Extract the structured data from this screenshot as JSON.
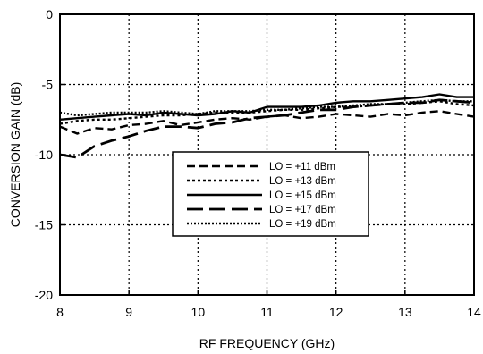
{
  "chart_data": {
    "type": "line",
    "title": "",
    "xlabel": "RF FREQUENCY (GHz)",
    "ylabel": "CONVERSION GAIN (dB)",
    "xlim": [
      8,
      14
    ],
    "ylim": [
      -20,
      0
    ],
    "xticks": [
      8,
      9,
      10,
      11,
      12,
      13,
      14
    ],
    "yticks": [
      0,
      -5,
      -10,
      -15,
      -20
    ],
    "grid": true,
    "legend_position": "center",
    "series": [
      {
        "name": "LO = +11 dBm",
        "style": "dashed",
        "x": [
          8.0,
          8.25,
          8.5,
          8.75,
          9.0,
          9.25,
          9.5,
          9.75,
          10.0,
          10.25,
          10.5,
          10.75,
          11.0,
          11.25,
          11.5,
          11.75,
          12.0,
          12.25,
          12.5,
          12.75,
          13.0,
          13.25,
          13.5,
          13.75,
          14.0
        ],
        "y": [
          -8.0,
          -8.5,
          -8.1,
          -8.2,
          -7.9,
          -7.8,
          -7.6,
          -7.9,
          -7.7,
          -7.5,
          -7.4,
          -7.5,
          -7.3,
          -7.2,
          -7.4,
          -7.3,
          -7.1,
          -7.2,
          -7.3,
          -7.1,
          -7.2,
          -7.0,
          -6.9,
          -7.1,
          -7.3
        ]
      },
      {
        "name": "LO = +13 dBm",
        "style": "dotted",
        "x": [
          8.0,
          8.25,
          8.5,
          8.75,
          9.0,
          9.25,
          9.5,
          9.75,
          10.0,
          10.25,
          10.5,
          10.75,
          11.0,
          11.25,
          11.5,
          11.75,
          12.0,
          12.25,
          12.5,
          12.75,
          13.0,
          13.25,
          13.5,
          13.75,
          14.0
        ],
        "y": [
          -7.8,
          -7.6,
          -7.5,
          -7.5,
          -7.4,
          -7.3,
          -7.2,
          -7.2,
          -7.1,
          -7.0,
          -7.0,
          -7.0,
          -6.9,
          -6.8,
          -6.8,
          -6.7,
          -6.6,
          -6.6,
          -6.5,
          -6.4,
          -6.4,
          -6.3,
          -6.2,
          -6.4,
          -6.5
        ]
      },
      {
        "name": "LO = +15 dBm",
        "style": "solid",
        "x": [
          8.0,
          8.25,
          8.5,
          8.75,
          9.0,
          9.25,
          9.5,
          9.75,
          10.0,
          10.25,
          10.5,
          10.75,
          11.0,
          11.25,
          11.5,
          11.75,
          12.0,
          12.25,
          12.5,
          12.75,
          13.0,
          13.25,
          13.5,
          13.75,
          14.0
        ],
        "y": [
          -7.5,
          -7.4,
          -7.3,
          -7.2,
          -7.1,
          -7.2,
          -7.0,
          -7.1,
          -7.2,
          -7.1,
          -6.9,
          -7.0,
          -6.6,
          -6.6,
          -6.6,
          -6.5,
          -6.3,
          -6.2,
          -6.2,
          -6.1,
          -6.0,
          -5.9,
          -5.7,
          -5.9,
          -5.9
        ]
      },
      {
        "name": "LO = +17 dBm",
        "style": "long-dash",
        "x": [
          8.0,
          8.25,
          8.5,
          8.75,
          9.0,
          9.25,
          9.5,
          9.75,
          10.0,
          10.25,
          10.5,
          10.75,
          11.0,
          11.25,
          11.5,
          11.75,
          12.0,
          12.25,
          12.5,
          12.75,
          13.0,
          13.25,
          13.5,
          13.75,
          14.0
        ],
        "y": [
          -10.0,
          -10.2,
          -9.4,
          -9.0,
          -8.7,
          -8.3,
          -8.0,
          -8.0,
          -8.1,
          -7.8,
          -7.7,
          -7.4,
          -7.3,
          -7.2,
          -7.0,
          -6.8,
          -6.8,
          -6.6,
          -6.5,
          -6.4,
          -6.3,
          -6.3,
          -6.1,
          -6.2,
          -6.3
        ]
      },
      {
        "name": "LO = +19 dBm",
        "style": "dense-dot",
        "x": [
          8.0,
          8.25,
          8.5,
          8.75,
          9.0,
          9.25,
          9.5,
          9.75,
          10.0,
          10.25,
          10.5,
          10.75,
          11.0,
          11.25,
          11.5,
          11.75,
          12.0,
          12.25,
          12.5,
          12.75,
          13.0,
          13.25,
          13.5,
          13.75,
          14.0
        ],
        "y": [
          -7.0,
          -7.2,
          -7.1,
          -7.0,
          -7.0,
          -7.0,
          -6.9,
          -7.0,
          -7.1,
          -6.9,
          -6.9,
          -6.9,
          -6.8,
          -6.8,
          -6.7,
          -6.6,
          -6.6,
          -6.5,
          -6.4,
          -6.4,
          -6.3,
          -6.2,
          -6.1,
          -6.2,
          -6.2
        ]
      }
    ]
  }
}
